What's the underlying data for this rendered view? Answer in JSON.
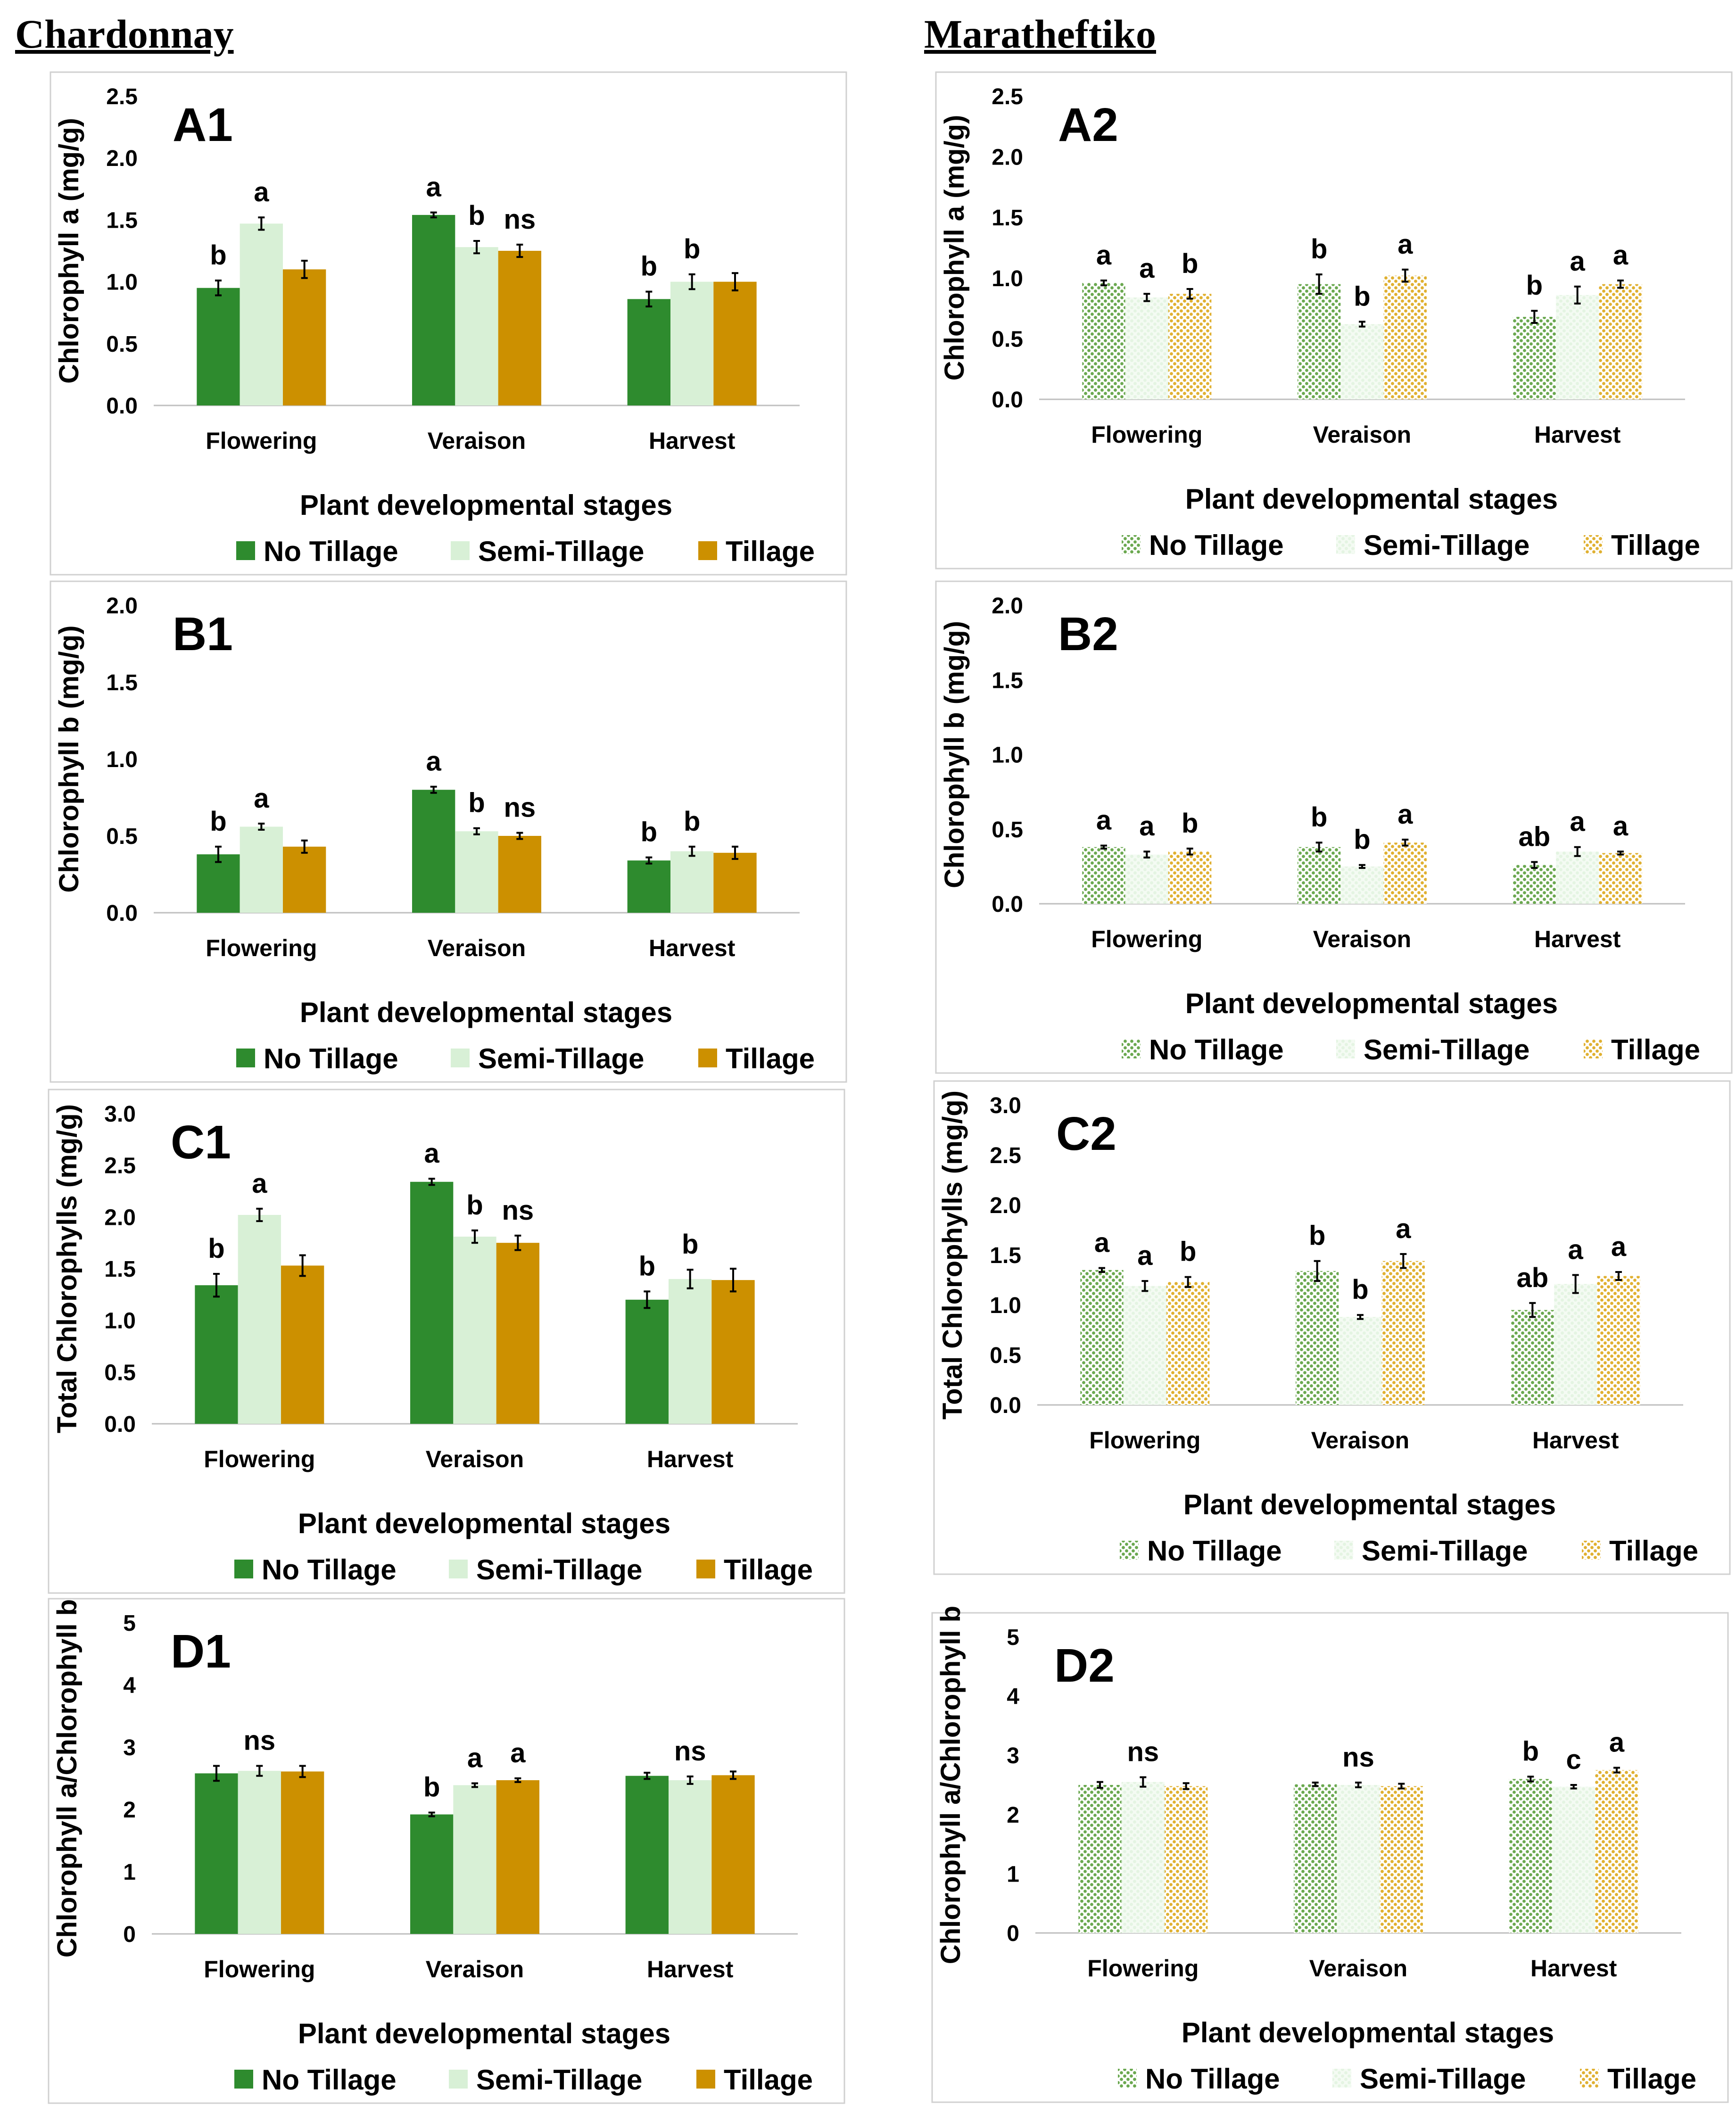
{
  "headings": {
    "left": "Chardonnay",
    "right": "Maratheftiko"
  },
  "colors": {
    "no_tillage": "#2e8b2e",
    "semi_tillage": "#d8f0d6",
    "tillage": "#cc9000",
    "pattern_green": "#6aa84f",
    "pattern_light": "#e4f4e2",
    "pattern_gold": "#e0b030"
  },
  "chart_data": [
    {
      "id": "A1",
      "type": "bar",
      "label": "A1",
      "variety": "Chardonnay",
      "pattern": false,
      "ylabel": "Chlorophyll a (mg/g)",
      "xlabel": "Plant developmental stages",
      "categories": [
        "Flowering",
        "Veraison",
        "Harvest"
      ],
      "ylim": [
        0,
        2.5
      ],
      "yticks": [
        "0.0",
        "0.5",
        "1.0",
        "1.5",
        "2.0",
        "2.5"
      ],
      "legend": [
        "No Tillage",
        "Semi-Tillage",
        "Tillage"
      ],
      "series": [
        {
          "name": "No Tillage",
          "values": [
            0.95,
            1.54,
            0.86
          ],
          "errors": [
            0.06,
            0.02,
            0.06
          ]
        },
        {
          "name": "Semi-Tillage",
          "values": [
            1.47,
            1.28,
            1.0
          ],
          "errors": [
            0.05,
            0.05,
            0.06
          ]
        },
        {
          "name": "Tillage",
          "values": [
            1.1,
            1.25,
            1.0
          ],
          "errors": [
            0.07,
            0.05,
            0.07
          ]
        }
      ],
      "letters": [
        [
          "b",
          "a",
          "b"
        ],
        [
          "a",
          "b",
          "b"
        ],
        [
          "",
          "ns",
          ""
        ]
      ]
    },
    {
      "id": "A2",
      "type": "bar",
      "label": "A2",
      "variety": "Maratheftiko",
      "pattern": true,
      "ylabel": "Chlorophyll a (mg/g)",
      "xlabel": "Plant developmental stages",
      "categories": [
        "Flowering",
        "Veraison",
        "Harvest"
      ],
      "ylim": [
        0,
        2.5
      ],
      "yticks": [
        "0.0",
        "0.5",
        "1.0",
        "1.5",
        "2.0",
        "2.5"
      ],
      "legend": [
        "No Tillage",
        "Semi-Tillage",
        "Tillage"
      ],
      "series": [
        {
          "name": "No Tillage",
          "values": [
            0.96,
            0.95,
            0.68
          ],
          "errors": [
            0.02,
            0.08,
            0.05
          ]
        },
        {
          "name": "Semi-Tillage",
          "values": [
            0.84,
            0.62,
            0.86
          ],
          "errors": [
            0.03,
            0.02,
            0.07
          ]
        },
        {
          "name": "Tillage",
          "values": [
            0.87,
            1.02,
            0.95
          ],
          "errors": [
            0.04,
            0.05,
            0.03
          ]
        }
      ],
      "letters": [
        [
          "a",
          "b",
          "b"
        ],
        [
          "a",
          "b",
          "a"
        ],
        [
          "b",
          "a",
          "a"
        ]
      ]
    },
    {
      "id": "B1",
      "type": "bar",
      "label": "B1",
      "variety": "Chardonnay",
      "pattern": false,
      "ylabel": "Chlorophyll b (mg/g)",
      "xlabel": "Plant developmental stages",
      "categories": [
        "Flowering",
        "Veraison",
        "Harvest"
      ],
      "ylim": [
        0,
        2.0
      ],
      "yticks": [
        "0.0",
        "0.5",
        "1.0",
        "1.5",
        "2.0"
      ],
      "legend": [
        "No Tillage",
        "Semi-Tillage",
        "Tillage"
      ],
      "series": [
        {
          "name": "No Tillage",
          "values": [
            0.38,
            0.8,
            0.34
          ],
          "errors": [
            0.05,
            0.02,
            0.02
          ]
        },
        {
          "name": "Semi-Tillage",
          "values": [
            0.56,
            0.53,
            0.4
          ],
          "errors": [
            0.02,
            0.02,
            0.03
          ]
        },
        {
          "name": "Tillage",
          "values": [
            0.43,
            0.5,
            0.39
          ],
          "errors": [
            0.04,
            0.02,
            0.04
          ]
        }
      ],
      "letters": [
        [
          "b",
          "a",
          "b"
        ],
        [
          "a",
          "b",
          "b"
        ],
        [
          "",
          "ns",
          ""
        ]
      ]
    },
    {
      "id": "B2",
      "type": "bar",
      "label": "B2",
      "variety": "Maratheftiko",
      "pattern": true,
      "ylabel": "Chlorophyll b (mg/g)",
      "xlabel": "Plant developmental stages",
      "categories": [
        "Flowering",
        "Veraison",
        "Harvest"
      ],
      "ylim": [
        0,
        2.0
      ],
      "yticks": [
        "0.0",
        "0.5",
        "1.0",
        "1.5",
        "2.0"
      ],
      "legend": [
        "No Tillage",
        "Semi-Tillage",
        "Tillage"
      ],
      "series": [
        {
          "name": "No Tillage",
          "values": [
            0.38,
            0.38,
            0.26
          ],
          "errors": [
            0.01,
            0.03,
            0.02
          ]
        },
        {
          "name": "Semi-Tillage",
          "values": [
            0.33,
            0.25,
            0.35
          ],
          "errors": [
            0.02,
            0.01,
            0.03
          ]
        },
        {
          "name": "Tillage",
          "values": [
            0.35,
            0.41,
            0.34
          ],
          "errors": [
            0.02,
            0.02,
            0.01
          ]
        }
      ],
      "letters": [
        [
          "a",
          "b",
          "ab"
        ],
        [
          "a",
          "b",
          "a"
        ],
        [
          "b",
          "a",
          "a"
        ]
      ]
    },
    {
      "id": "C1",
      "type": "bar",
      "label": "C1",
      "variety": "Chardonnay",
      "pattern": false,
      "ylabel": "Total Chlorophylls (mg/g)",
      "xlabel": "Plant developmental stages",
      "categories": [
        "Flowering",
        "Veraison",
        "Harvest"
      ],
      "ylim": [
        0,
        3.0
      ],
      "yticks": [
        "0.0",
        "0.5",
        "1.0",
        "1.5",
        "2.0",
        "2.5",
        "3.0"
      ],
      "legend": [
        "No Tillage",
        "Semi-Tillage",
        "Tillage"
      ],
      "series": [
        {
          "name": "No Tillage",
          "values": [
            1.34,
            2.34,
            1.2
          ],
          "errors": [
            0.11,
            0.03,
            0.08
          ]
        },
        {
          "name": "Semi-Tillage",
          "values": [
            2.02,
            1.81,
            1.4
          ],
          "errors": [
            0.06,
            0.06,
            0.09
          ]
        },
        {
          "name": "Tillage",
          "values": [
            1.53,
            1.75,
            1.39
          ],
          "errors": [
            0.1,
            0.07,
            0.11
          ]
        }
      ],
      "letters": [
        [
          "b",
          "a",
          "b"
        ],
        [
          "a",
          "b",
          "b"
        ],
        [
          "",
          "ns",
          ""
        ]
      ]
    },
    {
      "id": "C2",
      "type": "bar",
      "label": "C2",
      "variety": "Maratheftiko",
      "pattern": true,
      "ylabel": "Total Chlorophylls (mg/g)",
      "xlabel": "Plant developmental stages",
      "categories": [
        "Flowering",
        "Veraison",
        "Harvest"
      ],
      "ylim": [
        0,
        3.0
      ],
      "yticks": [
        "0.0",
        "0.5",
        "1.0",
        "1.5",
        "2.0",
        "2.5",
        "3.0"
      ],
      "legend": [
        "No Tillage",
        "Semi-Tillage",
        "Tillage"
      ],
      "series": [
        {
          "name": "No Tillage",
          "values": [
            1.35,
            1.34,
            0.95
          ],
          "errors": [
            0.02,
            0.1,
            0.07
          ]
        },
        {
          "name": "Semi-Tillage",
          "values": [
            1.19,
            0.88,
            1.21
          ],
          "errors": [
            0.05,
            0.02,
            0.09
          ]
        },
        {
          "name": "Tillage",
          "values": [
            1.23,
            1.44,
            1.29
          ],
          "errors": [
            0.05,
            0.07,
            0.04
          ]
        }
      ],
      "letters": [
        [
          "a",
          "b",
          "ab"
        ],
        [
          "a",
          "b",
          "a"
        ],
        [
          "b",
          "a",
          "a"
        ]
      ]
    },
    {
      "id": "D1",
      "type": "bar",
      "label": "D1",
      "variety": "Chardonnay",
      "pattern": false,
      "ylabel": "Chlorophyll a/Chlorophyll b",
      "xlabel": "Plant developmental stages",
      "categories": [
        "Flowering",
        "Veraison",
        "Harvest"
      ],
      "ylim": [
        0,
        5
      ],
      "yticks": [
        "0",
        "1",
        "2",
        "3",
        "4",
        "5"
      ],
      "legend": [
        "No Tillage",
        "Semi-Tillage",
        "Tillage"
      ],
      "series": [
        {
          "name": "No Tillage",
          "values": [
            2.58,
            1.92,
            2.54
          ],
          "errors": [
            0.12,
            0.03,
            0.05
          ]
        },
        {
          "name": "Semi-Tillage",
          "values": [
            2.62,
            2.39,
            2.47
          ],
          "errors": [
            0.08,
            0.03,
            0.06
          ]
        },
        {
          "name": "Tillage",
          "values": [
            2.61,
            2.47,
            2.55
          ],
          "errors": [
            0.09,
            0.03,
            0.06
          ]
        }
      ],
      "letters": [
        [
          "",
          "b",
          ""
        ],
        [
          "ns",
          "a",
          "ns"
        ],
        [
          "",
          "a",
          ""
        ]
      ]
    },
    {
      "id": "D2",
      "type": "bar",
      "label": "D2",
      "variety": "Maratheftiko",
      "pattern": true,
      "ylabel": "Chlorophyll a/Chlorophyll b",
      "xlabel": "Plant developmental stages",
      "categories": [
        "Flowering",
        "Veraison",
        "Harvest"
      ],
      "ylim": [
        0,
        5
      ],
      "yticks": [
        "0",
        "1",
        "2",
        "3",
        "4",
        "5"
      ],
      "legend": [
        "No Tillage",
        "Semi-Tillage",
        "Tillage"
      ],
      "series": [
        {
          "name": "No Tillage",
          "values": [
            2.5,
            2.51,
            2.6
          ],
          "errors": [
            0.05,
            0.03,
            0.04
          ]
        },
        {
          "name": "Semi-Tillage",
          "values": [
            2.55,
            2.5,
            2.47
          ],
          "errors": [
            0.08,
            0.04,
            0.03
          ]
        },
        {
          "name": "Tillage",
          "values": [
            2.48,
            2.48,
            2.75
          ],
          "errors": [
            0.05,
            0.04,
            0.04
          ]
        }
      ],
      "letters": [
        [
          "",
          "",
          "b"
        ],
        [
          "ns",
          "ns",
          "c"
        ],
        [
          "",
          "",
          "a"
        ]
      ]
    }
  ]
}
